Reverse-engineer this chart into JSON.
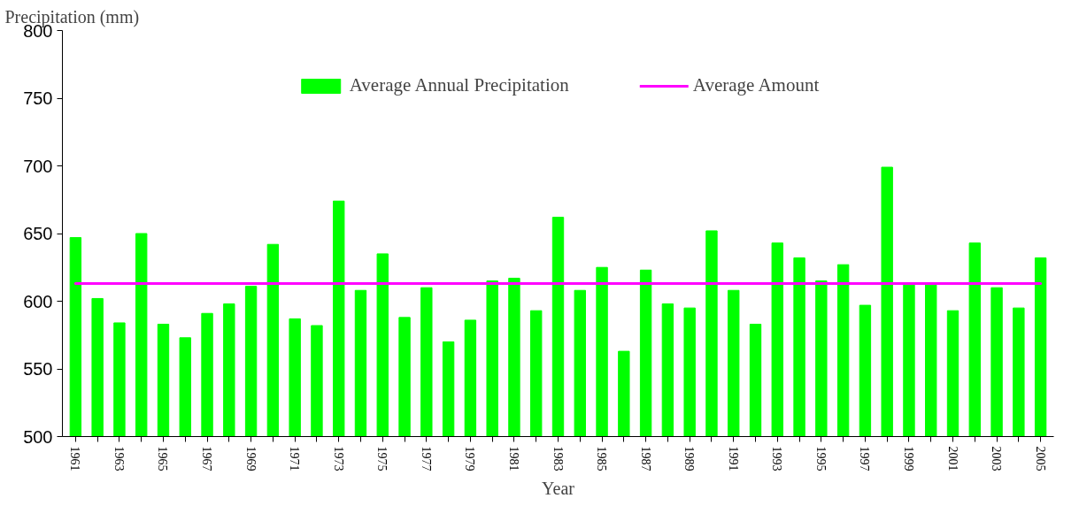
{
  "chart_data": {
    "type": "bar",
    "xlabel": "Year",
    "ylabel": "Precipitation (mm)",
    "categories": [
      "1961",
      null,
      "1963",
      null,
      "1965",
      null,
      "1967",
      null,
      "1969",
      null,
      "1971",
      null,
      "1973",
      null,
      "1975",
      null,
      "1977",
      null,
      "1979",
      null,
      "1981",
      null,
      "1983",
      null,
      "1985",
      null,
      "1987",
      null,
      "1989",
      null,
      "1991",
      null,
      "1993",
      null,
      "1995",
      null,
      "1997",
      null,
      "1999",
      null,
      "2001",
      null,
      "2003",
      null,
      "2005"
    ],
    "series": [
      {
        "name": "Average Annual Precipitation",
        "color": "#00ff00",
        "values": [
          647,
          602,
          584,
          650,
          583,
          573,
          591,
          598,
          611,
          642,
          587,
          582,
          674,
          608,
          635,
          588,
          610,
          570,
          586,
          615,
          617,
          593,
          662,
          608,
          625,
          563,
          623,
          598,
          595,
          652,
          608,
          583,
          643,
          632,
          615,
          627,
          597,
          699,
          612,
          612,
          593,
          643,
          610,
          595,
          632
        ]
      }
    ],
    "ref_lines": [
      {
        "axis": "y",
        "value": 613,
        "label": "Average Amount",
        "color": "#ff00ff"
      }
    ],
    "ylim": [
      500,
      800
    ],
    "yticks": [
      500,
      550,
      600,
      650,
      700,
      750,
      800
    ],
    "legend": "top"
  }
}
